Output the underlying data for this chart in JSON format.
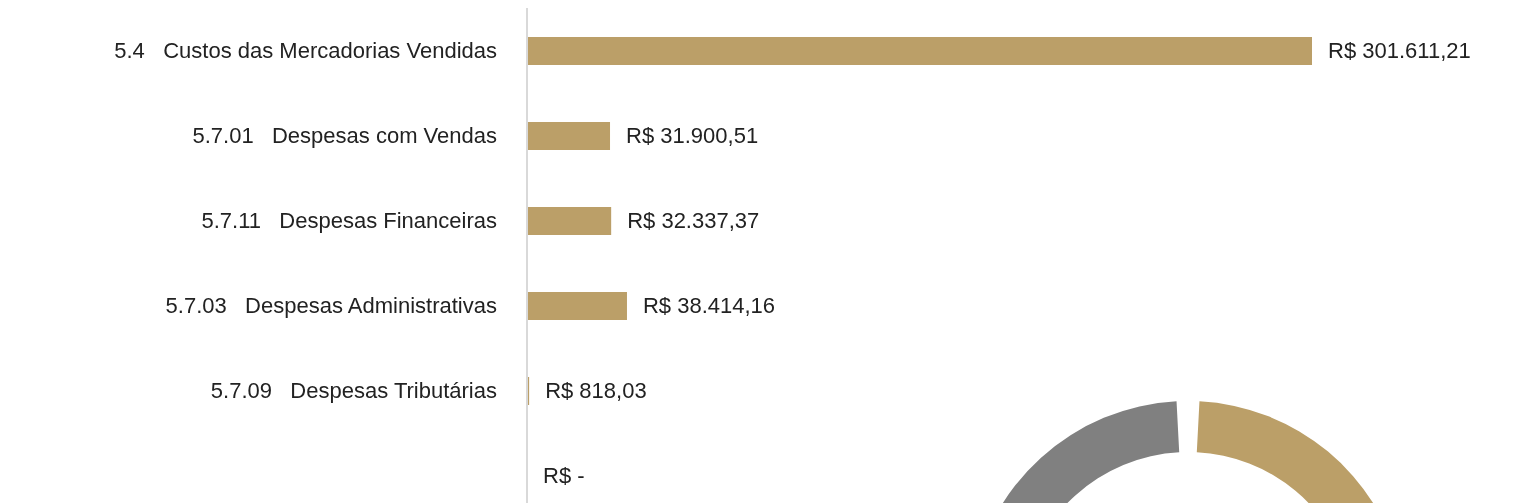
{
  "chart_data": {
    "type": "bar",
    "orientation": "horizontal",
    "color": "#bb9f68",
    "categories": [
      "5.4   Custos das Mercadorias Vendidas",
      "5.7.01   Despesas com Vendas",
      "5.7.11   Despesas Financeiras",
      "5.7.03   Despesas Administrativas",
      "5.7.09   Despesas Tributárias",
      null
    ],
    "values": [
      301611.21,
      31900.51,
      32337.37,
      38414.16,
      818.03,
      0
    ],
    "value_labels": [
      "R$ 301.611,21",
      "R$ 31.900,51",
      "R$ 32.337,37",
      "R$ 38.414,16",
      "R$ 818,03",
      "R$ -"
    ]
  }
}
